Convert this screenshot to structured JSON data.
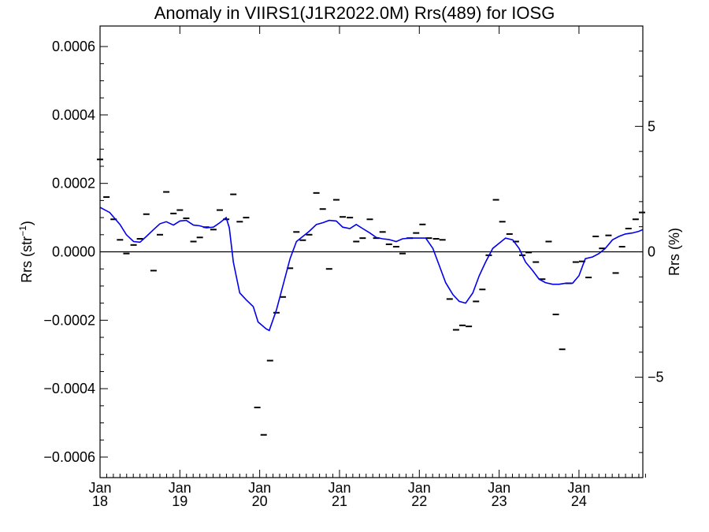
{
  "chart_data": {
    "type": "line",
    "title": "Anomaly in VIIRS1(J1R2022.0M) Rrs(489) for IOSG",
    "ylabel_left_base": "Rrs (str",
    "ylabel_left_sup": "−1",
    "ylabel_left_end": ")",
    "ylabel_right": "Rrs (%)",
    "xlim": [
      2018.0,
      2024.8
    ],
    "ylim_left": [
      -0.00066,
      0.00066
    ],
    "ylim_right": [
      -9.0,
      9.0
    ],
    "y_ticks_left": [
      {
        "value": 0.0006,
        "label": "0.0006"
      },
      {
        "value": 0.0004,
        "label": "0.0004"
      },
      {
        "value": 0.0002,
        "label": "0.0002"
      },
      {
        "value": 0.0,
        "label": "0.0000"
      },
      {
        "value": -0.0002,
        "label": "−0.0002"
      },
      {
        "value": -0.0004,
        "label": "−0.0004"
      },
      {
        "value": -0.0006,
        "label": "−0.0006"
      }
    ],
    "y_ticks_right": [
      {
        "value": 5,
        "label": "5"
      },
      {
        "value": 0,
        "label": "0"
      },
      {
        "value": -5,
        "label": "−5"
      }
    ],
    "x_ticks": [
      {
        "value": 2018.0,
        "month": "Jan",
        "year": "18"
      },
      {
        "value": 2019.0,
        "month": "Jan",
        "year": "19"
      },
      {
        "value": 2020.0,
        "month": "Jan",
        "year": "20"
      },
      {
        "value": 2021.0,
        "month": "Jan",
        "year": "21"
      },
      {
        "value": 2022.0,
        "month": "Jan",
        "year": "22"
      },
      {
        "value": 2023.0,
        "month": "Jan",
        "year": "23"
      },
      {
        "value": 2024.0,
        "month": "Jan",
        "year": "24"
      }
    ],
    "reference_line_y": 0,
    "colors": {
      "line": "#0000ee",
      "points": "#000000",
      "axes": "#000000"
    },
    "series": [
      {
        "type": "scatter",
        "marker": "dash",
        "points": [
          [
            2018.0,
            0.00027
          ],
          [
            2018.08,
            0.00016
          ],
          [
            2018.17,
            9.5e-05
          ],
          [
            2018.25,
            3.5e-05
          ],
          [
            2018.33,
            -5e-06
          ],
          [
            2018.42,
            2e-05
          ],
          [
            2018.5,
            3.8e-05
          ],
          [
            2018.58,
            0.00011
          ],
          [
            2018.67,
            -5.5e-05
          ],
          [
            2018.75,
            5e-05
          ],
          [
            2018.83,
            0.000175
          ],
          [
            2018.92,
            0.000112
          ],
          [
            2019.0,
            0.000122
          ],
          [
            2019.08,
            9.8e-05
          ],
          [
            2019.17,
            3e-05
          ],
          [
            2019.25,
            4.2e-05
          ],
          [
            2019.33,
            7.2e-05
          ],
          [
            2019.42,
            6.5e-05
          ],
          [
            2019.5,
            0.000122
          ],
          [
            2019.58,
            9.5e-05
          ],
          [
            2019.67,
            0.000168
          ],
          [
            2019.75,
            8.8e-05
          ],
          [
            2019.83,
            0.0001
          ],
          [
            2019.97,
            -0.000455
          ],
          [
            2020.05,
            -0.000535
          ],
          [
            2020.13,
            -0.000318
          ],
          [
            2020.21,
            -0.000178
          ],
          [
            2020.29,
            -0.000132
          ],
          [
            2020.38,
            -4.8e-05
          ],
          [
            2020.46,
            5.8e-05
          ],
          [
            2020.54,
            3.4e-05
          ],
          [
            2020.62,
            5e-05
          ],
          [
            2020.71,
            0.000172
          ],
          [
            2020.79,
            0.000125
          ],
          [
            2020.87,
            -5e-05
          ],
          [
            2020.96,
            0.000152
          ],
          [
            2021.04,
            0.000102
          ],
          [
            2021.13,
            0.0001
          ],
          [
            2021.21,
            3e-05
          ],
          [
            2021.29,
            4e-05
          ],
          [
            2021.38,
            9.5e-05
          ],
          [
            2021.46,
            4e-05
          ],
          [
            2021.54,
            5.8e-05
          ],
          [
            2021.62,
            2.2e-05
          ],
          [
            2021.71,
            1.5e-05
          ],
          [
            2021.79,
            -5e-06
          ],
          [
            2021.88,
            4e-05
          ],
          [
            2021.96,
            5.5e-05
          ],
          [
            2022.04,
            8e-05
          ],
          [
            2022.12,
            4e-05
          ],
          [
            2022.21,
            3.8e-05
          ],
          [
            2022.29,
            3.5e-05
          ],
          [
            2022.38,
            -0.000138
          ],
          [
            2022.46,
            -0.000228
          ],
          [
            2022.54,
            -0.000215
          ],
          [
            2022.62,
            -0.000218
          ],
          [
            2022.71,
            -0.000145
          ],
          [
            2022.79,
            -0.00011
          ],
          [
            2022.87,
            -1e-05
          ],
          [
            2022.96,
            0.000152
          ],
          [
            2023.04,
            8.8e-05
          ],
          [
            2023.13,
            5.2e-05
          ],
          [
            2023.21,
            3e-05
          ],
          [
            2023.29,
            -1e-05
          ],
          [
            2023.37,
            -2e-06
          ],
          [
            2023.46,
            -3e-05
          ],
          [
            2023.54,
            -8e-05
          ],
          [
            2023.62,
            3e-05
          ],
          [
            2023.71,
            -0.000183
          ],
          [
            2023.79,
            -0.000285
          ],
          [
            2023.87,
            -9.2e-05
          ],
          [
            2023.96,
            -3e-05
          ],
          [
            2024.04,
            -2.8e-05
          ],
          [
            2024.12,
            -7.5e-05
          ],
          [
            2024.21,
            4.5e-05
          ],
          [
            2024.29,
            1e-05
          ],
          [
            2024.37,
            4.8e-05
          ],
          [
            2024.46,
            -6.2e-05
          ],
          [
            2024.54,
            1.5e-05
          ],
          [
            2024.62,
            6.8e-05
          ],
          [
            2024.71,
            9.5e-05
          ],
          [
            2024.79,
            0.000115
          ]
        ]
      },
      {
        "type": "line",
        "points": [
          [
            2018.0,
            0.00013
          ],
          [
            2018.12,
            0.000115
          ],
          [
            2018.25,
            8e-05
          ],
          [
            2018.33,
            5e-05
          ],
          [
            2018.42,
            3e-05
          ],
          [
            2018.5,
            2.8e-05
          ],
          [
            2018.58,
            4.5e-05
          ],
          [
            2018.67,
            6.5e-05
          ],
          [
            2018.75,
            8.2e-05
          ],
          [
            2018.83,
            8.8e-05
          ],
          [
            2018.92,
            7.8e-05
          ],
          [
            2019.0,
            9e-05
          ],
          [
            2019.08,
            9.2e-05
          ],
          [
            2019.17,
            7.8e-05
          ],
          [
            2019.25,
            7.6e-05
          ],
          [
            2019.33,
            7e-05
          ],
          [
            2019.42,
            7.2e-05
          ],
          [
            2019.5,
            8.5e-05
          ],
          [
            2019.58,
            0.0001
          ],
          [
            2019.62,
            7e-05
          ],
          [
            2019.67,
            -3e-05
          ],
          [
            2019.75,
            -0.00012
          ],
          [
            2019.83,
            -0.00014
          ],
          [
            2019.92,
            -0.00016
          ],
          [
            2019.98,
            -0.000205
          ],
          [
            2020.08,
            -0.000225
          ],
          [
            2020.12,
            -0.00023
          ],
          [
            2020.21,
            -0.00017
          ],
          [
            2020.29,
            -0.0001
          ],
          [
            2020.38,
            -2e-05
          ],
          [
            2020.46,
            3e-05
          ],
          [
            2020.54,
            4.5e-05
          ],
          [
            2020.62,
            6e-05
          ],
          [
            2020.71,
            8e-05
          ],
          [
            2020.79,
            8.5e-05
          ],
          [
            2020.87,
            9.2e-05
          ],
          [
            2020.96,
            9e-05
          ],
          [
            2021.04,
            7.2e-05
          ],
          [
            2021.13,
            6.8e-05
          ],
          [
            2021.21,
            8e-05
          ],
          [
            2021.29,
            6.8e-05
          ],
          [
            2021.38,
            5.5e-05
          ],
          [
            2021.46,
            4.2e-05
          ],
          [
            2021.54,
            3.8e-05
          ],
          [
            2021.62,
            3.6e-05
          ],
          [
            2021.71,
            3e-05
          ],
          [
            2021.79,
            3.8e-05
          ],
          [
            2021.88,
            4e-05
          ],
          [
            2021.96,
            4e-05
          ],
          [
            2022.04,
            4e-05
          ],
          [
            2022.08,
            4e-05
          ],
          [
            2022.17,
            1e-05
          ],
          [
            2022.25,
            -4e-05
          ],
          [
            2022.33,
            -9e-05
          ],
          [
            2022.42,
            -0.000125
          ],
          [
            2022.5,
            -0.000145
          ],
          [
            2022.58,
            -0.00015
          ],
          [
            2022.67,
            -0.00012
          ],
          [
            2022.75,
            -7e-05
          ],
          [
            2022.83,
            -3e-05
          ],
          [
            2022.92,
            1e-05
          ],
          [
            2023.0,
            2.5e-05
          ],
          [
            2023.08,
            4e-05
          ],
          [
            2023.17,
            3.5e-05
          ],
          [
            2023.25,
            1e-05
          ],
          [
            2023.33,
            -3e-05
          ],
          [
            2023.42,
            -5.5e-05
          ],
          [
            2023.5,
            -8e-05
          ],
          [
            2023.58,
            -9e-05
          ],
          [
            2023.67,
            -9.5e-05
          ],
          [
            2023.75,
            -9.5e-05
          ],
          [
            2023.83,
            -9.2e-05
          ],
          [
            2023.92,
            -9.2e-05
          ],
          [
            2024.0,
            -7e-05
          ],
          [
            2024.08,
            -2e-05
          ],
          [
            2024.17,
            -1.5e-05
          ],
          [
            2024.25,
            -5e-06
          ],
          [
            2024.33,
            1e-05
          ],
          [
            2024.42,
            3.5e-05
          ],
          [
            2024.5,
            4.5e-05
          ],
          [
            2024.58,
            5.2e-05
          ],
          [
            2024.67,
            5.5e-05
          ],
          [
            2024.75,
            6e-05
          ],
          [
            2024.8,
            6.5e-05
          ]
        ]
      }
    ],
    "grid": false
  }
}
